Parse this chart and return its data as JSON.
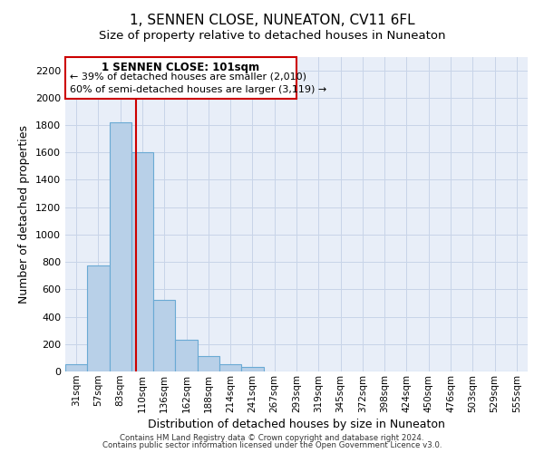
{
  "title": "1, SENNEN CLOSE, NUNEATON, CV11 6FL",
  "subtitle": "Size of property relative to detached houses in Nuneaton",
  "xlabel": "Distribution of detached houses by size in Nuneaton",
  "ylabel": "Number of detached properties",
  "bar_labels": [
    "31sqm",
    "57sqm",
    "83sqm",
    "110sqm",
    "136sqm",
    "162sqm",
    "188sqm",
    "214sqm",
    "241sqm",
    "267sqm",
    "293sqm",
    "319sqm",
    "345sqm",
    "372sqm",
    "398sqm",
    "424sqm",
    "450sqm",
    "476sqm",
    "503sqm",
    "529sqm",
    "555sqm"
  ],
  "bar_values": [
    50,
    775,
    1820,
    1600,
    520,
    230,
    110,
    55,
    30,
    0,
    0,
    0,
    0,
    0,
    0,
    0,
    0,
    0,
    0,
    0,
    0
  ],
  "bar_color": "#b8d0e8",
  "bar_edge_color": "#6aaad4",
  "bar_edge_width": 0.8,
  "ylim": [
    0,
    2300
  ],
  "yticks": [
    0,
    200,
    400,
    600,
    800,
    1000,
    1200,
    1400,
    1600,
    1800,
    2000,
    2200
  ],
  "property_line_x": 2.72,
  "property_line_color": "#cc0000",
  "annotation_title": "1 SENNEN CLOSE: 101sqm",
  "annotation_line1": "← 39% of detached houses are smaller (2,010)",
  "annotation_line2": "60% of semi-detached houses are larger (3,119) →",
  "footer_line1": "Contains HM Land Registry data © Crown copyright and database right 2024.",
  "footer_line2": "Contains public sector information licensed under the Open Government Licence v3.0.",
  "grid_color": "#c8d4e8",
  "background_color": "#e8eef8",
  "fig_background": "#ffffff",
  "title_fontsize": 11,
  "axis_label_fontsize": 9,
  "tick_fontsize": 8,
  "xtick_fontsize": 7.5
}
